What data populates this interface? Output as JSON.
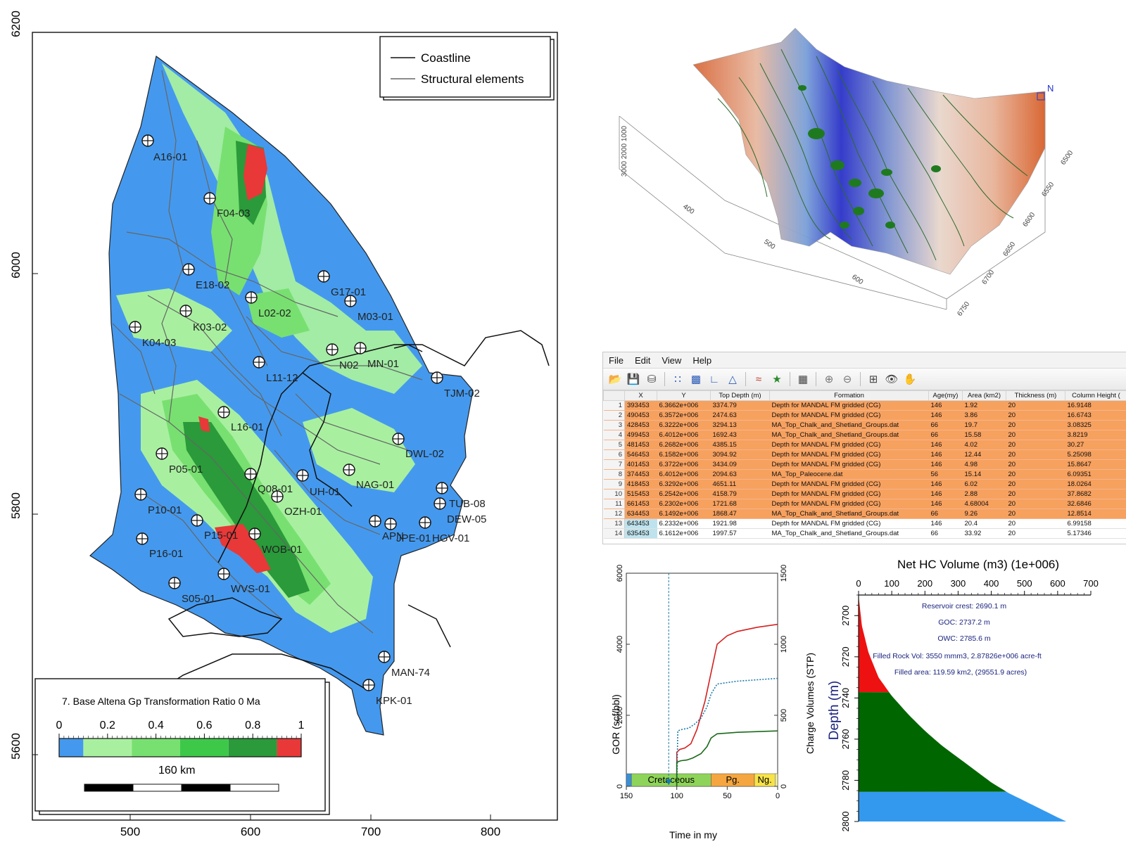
{
  "map": {
    "y_ticks": [
      "6200",
      "6000",
      "5800",
      "5600"
    ],
    "x_ticks": [
      "500",
      "600",
      "700",
      "800"
    ],
    "legend": {
      "coastline": "Coastline",
      "structural": "Structural elements"
    },
    "wells": [
      "A16-01",
      "F04-03",
      "E18-02",
      "G17-01",
      "L02-02",
      "M03-01",
      "K03-02",
      "K04-03",
      "N02",
      "MN-01",
      "L11-12",
      "TJM-02",
      "L16-01",
      "DWL-02",
      "P05-01",
      "NAG-01",
      "Q08-01",
      "UH-01",
      "OZH-01",
      "TUB-08",
      "P10-01",
      "DEW-05",
      "P15-01",
      "APN",
      "JPE-01",
      "HGV-01",
      "WOB-01",
      "P16-01",
      "WVS-01",
      "S05-01",
      "MAN-74",
      "KPK-01"
    ],
    "colorbar": {
      "title": "7. Base Altena Gp Transformation Ratio 0 Ma",
      "ticks": [
        "0",
        "0.2",
        "0.4",
        "0.6",
        "0.8",
        "1"
      ],
      "colors": [
        "#4499ee",
        "#a8f0a0",
        "#78e070",
        "#3ec84a",
        "#2a9a3a",
        "#e83838"
      ],
      "scale": "160 km"
    }
  },
  "surface3d": {
    "z_ticks": [
      "1000",
      "2000",
      "3000"
    ],
    "x_ticks": [
      "400",
      "500",
      "600"
    ],
    "y_ticks": [
      "6750",
      "6700",
      "6650",
      "6600",
      "6550",
      "6500"
    ],
    "axis_label": "N"
  },
  "table": {
    "menu": [
      "File",
      "Edit",
      "View",
      "Help"
    ],
    "toolbar_icons": [
      "open-folder-icon",
      "save-icon",
      "database-icon",
      "scatter-plot-icon",
      "bar-chart-icon",
      "curve-icon",
      "triangle-icon",
      "line-chart-icon",
      "star-icon",
      "grid-icon",
      "zoom-in-icon",
      "zoom-out-icon",
      "layout-icon",
      "eye-icon",
      "hand-icon"
    ],
    "columns": [
      "X",
      "Y",
      "Top Depth (m)",
      "Formation",
      "Age(my)",
      "Area (km2)",
      "Thickness (m)",
      "Column Height ("
    ],
    "rows": [
      {
        "n": "1",
        "x": "393453",
        "y": "6.3662e+006",
        "depth": "3374.79",
        "formation": "Depth for MANDAL FM gridded (CG)",
        "age": "146",
        "area": "1.92",
        "thickness": "20",
        "column": "16.9148"
      },
      {
        "n": "2",
        "x": "490453",
        "y": "6.3572e+006",
        "depth": "2474.63",
        "formation": "Depth for MANDAL FM gridded (CG)",
        "age": "146",
        "area": "3.86",
        "thickness": "20",
        "column": "16.6743"
      },
      {
        "n": "3",
        "x": "428453",
        "y": "6.3222e+006",
        "depth": "3294.13",
        "formation": "MA_Top_Chalk_and_Shetland_Groups.dat",
        "age": "66",
        "area": "19.7",
        "thickness": "20",
        "column": "3.08325"
      },
      {
        "n": "4",
        "x": "499453",
        "y": "6.4012e+006",
        "depth": "1692.43",
        "formation": "MA_Top_Chalk_and_Shetland_Groups.dat",
        "age": "66",
        "area": "15.58",
        "thickness": "20",
        "column": "3.8219"
      },
      {
        "n": "5",
        "x": "481453",
        "y": "6.2682e+006",
        "depth": "4385.15",
        "formation": "Depth for MANDAL FM gridded (CG)",
        "age": "146",
        "area": "4.02",
        "thickness": "20",
        "column": "30.27"
      },
      {
        "n": "6",
        "x": "546453",
        "y": "6.1582e+006",
        "depth": "3094.92",
        "formation": "Depth for MANDAL FM gridded (CG)",
        "age": "146",
        "area": "12.44",
        "thickness": "20",
        "column": "5.25098"
      },
      {
        "n": "7",
        "x": "401453",
        "y": "6.3722e+006",
        "depth": "3434.09",
        "formation": "Depth for MANDAL FM gridded (CG)",
        "age": "146",
        "area": "4.98",
        "thickness": "20",
        "column": "15.8647"
      },
      {
        "n": "8",
        "x": "374453",
        "y": "6.4012e+006",
        "depth": "2094.63",
        "formation": "MA_Top_Paleocene.dat",
        "age": "56",
        "area": "15.14",
        "thickness": "20",
        "column": "6.09351"
      },
      {
        "n": "9",
        "x": "418453",
        "y": "6.3292e+006",
        "depth": "4651.11",
        "formation": "Depth for MANDAL FM gridded (CG)",
        "age": "146",
        "area": "6.02",
        "thickness": "20",
        "column": "18.0264"
      },
      {
        "n": "10",
        "x": "515453",
        "y": "6.2542e+006",
        "depth": "4158.79",
        "formation": "Depth for MANDAL FM gridded (CG)",
        "age": "146",
        "area": "2.88",
        "thickness": "20",
        "column": "37.8682"
      },
      {
        "n": "11",
        "x": "661453",
        "y": "6.2302e+006",
        "depth": "1721.68",
        "formation": "Depth for MANDAL FM gridded (CG)",
        "age": "146",
        "area": "4.68004",
        "thickness": "20",
        "column": "32.6846"
      },
      {
        "n": "12",
        "x": "634453",
        "y": "6.1492e+006",
        "depth": "1868.47",
        "formation": "MA_Top_Chalk_and_Shetland_Groups.dat",
        "age": "66",
        "area": "9.26",
        "thickness": "20",
        "column": "12.8514"
      },
      {
        "n": "13",
        "x": "643453",
        "y": "6.2332e+006",
        "depth": "1921.98",
        "formation": "Depth for MANDAL FM gridded (CG)",
        "age": "146",
        "area": "20.4",
        "thickness": "20",
        "column": "6.99158"
      },
      {
        "n": "14",
        "x": "635453",
        "y": "6.1612e+006",
        "depth": "1997.57",
        "formation": "MA_Top_Chalk_and_Shetland_Groups.dat",
        "age": "66",
        "area": "33.92",
        "thickness": "20",
        "column": "5.17346"
      }
    ],
    "highlighted_rows": 12
  },
  "chart_data": [
    {
      "type": "line",
      "xlabel": "Time in my",
      "ylabel": "GOR (scf/bbl)",
      "y2label": "Charge Volumes (STP)",
      "xlim": [
        150,
        0
      ],
      "ylim": [
        0,
        6000
      ],
      "y2lim": [
        0,
        1500
      ],
      "x_ticks": [
        "150",
        "100",
        "50",
        "0"
      ],
      "y_ticks": [
        "0",
        "2000",
        "4000",
        "6000"
      ],
      "y2_ticks": [
        "0",
        "500",
        "1000",
        "1500"
      ],
      "marker_time": 108,
      "periods": [
        {
          "label": "",
          "from": 150,
          "to": 145,
          "color": "#3b8fd8"
        },
        {
          "label": "Cretaceous",
          "from": 145,
          "to": 66,
          "color": "#8fd45a"
        },
        {
          "label": "Pg.",
          "from": 66,
          "to": 23,
          "color": "#f5a640"
        },
        {
          "label": "Ng.",
          "from": 23,
          "to": 2.6,
          "color": "#f7e34a"
        },
        {
          "label": "",
          "from": 2.6,
          "to": 0,
          "color": "#f0f0a0"
        }
      ],
      "series": [
        {
          "color": "#d42020",
          "axis": "y2",
          "x": [
            100,
            100,
            97,
            92,
            86,
            80,
            72,
            66,
            60,
            50,
            40,
            20,
            0
          ],
          "y": [
            0,
            240,
            260,
            270,
            300,
            400,
            600,
            800,
            1000,
            1060,
            1090,
            1120,
            1140
          ]
        },
        {
          "color": "#1a7aa8",
          "axis": "y2",
          "dash": true,
          "x": [
            100,
            99,
            95,
            88,
            82,
            76,
            70,
            66,
            60,
            50,
            40,
            20,
            0
          ],
          "y": [
            0,
            390,
            400,
            410,
            440,
            480,
            560,
            650,
            720,
            730,
            740,
            750,
            760
          ]
        },
        {
          "color": "#1a6a1a",
          "axis": "y2",
          "x": [
            100,
            100,
            96,
            90,
            84,
            76,
            70,
            66,
            60,
            50,
            40,
            20,
            0
          ],
          "y": [
            0,
            170,
            180,
            185,
            200,
            230,
            280,
            340,
            370,
            375,
            380,
            385,
            390
          ]
        }
      ]
    },
    {
      "type": "area",
      "title": "Net HC Volume (m3) (1e+006)",
      "ylabel": "Depth (m)",
      "xlim": [
        0,
        700
      ],
      "ylim": [
        2800,
        2690
      ],
      "x_ticks": [
        "0",
        "100",
        "200",
        "300",
        "400",
        "500",
        "600",
        "700"
      ],
      "y_ticks": [
        "2700",
        "2720",
        "2740",
        "2760",
        "2780",
        "2800"
      ],
      "curve_x": [
        0,
        10,
        30,
        60,
        100,
        150,
        200,
        250,
        300,
        350,
        400,
        450,
        500,
        550,
        600,
        626
      ],
      "curve_y": [
        2690.1,
        2705,
        2718,
        2730,
        2739,
        2748,
        2756,
        2763,
        2769,
        2775,
        2781,
        2786,
        2790,
        2794,
        2798,
        2800
      ],
      "zones": [
        {
          "name": "gas",
          "from": 2690.1,
          "to": 2737.2,
          "color": "#ee1111"
        },
        {
          "name": "oil",
          "from": 2737.2,
          "to": 2785.6,
          "color": "#006600"
        },
        {
          "name": "water",
          "from": 2785.6,
          "to": 2800,
          "color": "#3399ee"
        }
      ],
      "annotations": [
        "Reservoir crest: 2690.1 m",
        "GOC: 2737.2 m",
        "OWC: 2785.6 m",
        "Filled Rock Vol: 3550 mmm3, 2.87826e+006 acre-ft",
        "Filled area: 119.59 km2, (29551.9 acres)"
      ]
    }
  ]
}
